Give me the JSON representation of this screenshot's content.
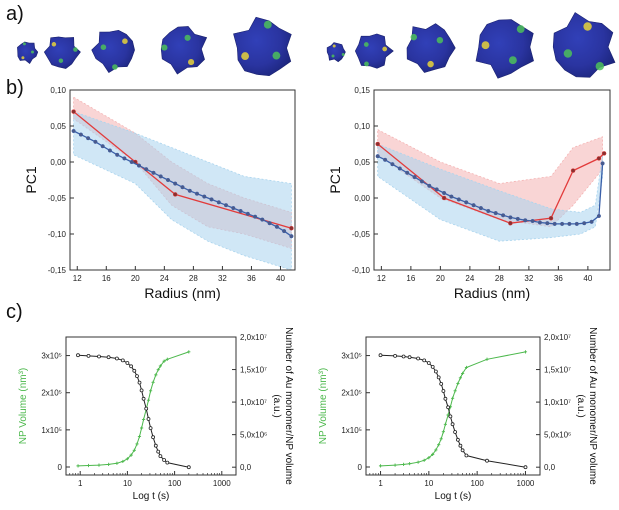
{
  "panels": {
    "a": "a)",
    "b": "b)",
    "c": "c)"
  },
  "colors": {
    "red": "#e23b3b",
    "blue": "#3a5fa8",
    "red_band": "#f4b3b3",
    "blue_band": "#a9d4ee",
    "green": "#4cb84c",
    "black": "#222222",
    "np_blue": "#2a3aa8"
  },
  "thumbnails": {
    "count_left": 5,
    "count_right": 5,
    "description_icon": "nanoparticle-icon"
  },
  "chart_data": [
    {
      "type": "line",
      "panel": "b-left",
      "xlabel": "Radius (nm)",
      "ylabel": "PC1",
      "xlim": [
        11,
        42
      ],
      "ylim": [
        -0.15,
        0.1
      ],
      "xticks": [
        "12",
        "16",
        "20",
        "24",
        "28",
        "32",
        "36",
        "40"
      ],
      "yticks": [
        "0,10",
        "0,05",
        "0,00",
        "-0,05",
        "-0,10",
        "-0,15"
      ],
      "band_red": {
        "x": [
          11.5,
          20,
          25,
          30,
          35,
          41.5
        ],
        "upper": [
          0.09,
          0.04,
          0.0,
          -0.03,
          -0.05,
          -0.07
        ],
        "lower": [
          0.06,
          0.0,
          -0.06,
          -0.09,
          -0.1,
          -0.12
        ]
      },
      "band_blue": {
        "x": [
          11.5,
          20,
          25,
          30,
          35,
          41.5
        ],
        "upper": [
          0.07,
          0.04,
          0.02,
          0.0,
          -0.02,
          -0.03
        ],
        "lower": [
          0.01,
          -0.03,
          -0.08,
          -0.11,
          -0.13,
          -0.15
        ]
      },
      "series": [
        {
          "color": "red",
          "x": [
            11.5,
            20,
            25.5,
            41.5
          ],
          "values": [
            0.07,
            0.0,
            -0.045,
            -0.092
          ]
        },
        {
          "color": "blue",
          "x": [
            11.5,
            12.5,
            13.5,
            14.5,
            15.5,
            16.5,
            17.5,
            18.5,
            19.5,
            20.5,
            21.5,
            22.5,
            23.5,
            24.5,
            25.5,
            26.5,
            27.5,
            28.5,
            29.5,
            30.5,
            31.5,
            32.5,
            33.5,
            34.5,
            35.5,
            36.5,
            37.5,
            38.5,
            39.5,
            40.5,
            41.5
          ],
          "values": [
            0.043,
            0.038,
            0.033,
            0.028,
            0.022,
            0.016,
            0.01,
            0.005,
            0.0,
            -0.005,
            -0.01,
            -0.015,
            -0.02,
            -0.025,
            -0.03,
            -0.035,
            -0.04,
            -0.044,
            -0.048,
            -0.052,
            -0.056,
            -0.06,
            -0.064,
            -0.068,
            -0.072,
            -0.076,
            -0.08,
            -0.085,
            -0.09,
            -0.096,
            -0.103
          ]
        }
      ]
    },
    {
      "type": "line",
      "panel": "b-right",
      "xlabel": "Radius (nm)",
      "ylabel": "PC1",
      "xlim": [
        11,
        43
      ],
      "ylim": [
        -0.1,
        0.15
      ],
      "xticks": [
        "12",
        "16",
        "20",
        "24",
        "28",
        "32",
        "36",
        "40"
      ],
      "yticks": [
        "0,15",
        "0,10",
        "0,05",
        "0,00",
        "-0,05",
        "-0,10"
      ],
      "band_red": {
        "x": [
          11.5,
          20,
          28,
          35,
          38,
          42
        ],
        "upper": [
          0.095,
          0.05,
          0.02,
          0.03,
          0.07,
          0.085
        ],
        "lower": [
          0.06,
          0.0,
          -0.03,
          -0.04,
          -0.01,
          0.04
        ]
      },
      "band_blue": {
        "x": [
          11.5,
          20,
          28,
          35,
          39,
          41,
          42
        ],
        "upper": [
          0.075,
          0.04,
          0.01,
          -0.015,
          -0.02,
          -0.01,
          0.06
        ],
        "lower": [
          0.03,
          -0.03,
          -0.06,
          -0.055,
          -0.05,
          -0.04,
          0.03
        ]
      },
      "series": [
        {
          "color": "red",
          "x": [
            11.5,
            20.5,
            29.5,
            35,
            38,
            41.5,
            42.2
          ],
          "values": [
            0.075,
            0.0,
            -0.035,
            -0.028,
            0.038,
            0.055,
            0.062
          ]
        },
        {
          "color": "blue",
          "x": [
            11.5,
            12.5,
            13.5,
            14.5,
            15.5,
            16.5,
            17.5,
            18.5,
            19.5,
            20.5,
            21.5,
            22.5,
            23.5,
            24.5,
            25.5,
            26.5,
            27.5,
            28.5,
            29.5,
            30.5,
            31.5,
            32.5,
            33.5,
            34.5,
            35.5,
            36.5,
            37.5,
            38.5,
            39.5,
            40.5,
            41.5,
            42.0
          ],
          "values": [
            0.058,
            0.053,
            0.047,
            0.041,
            0.035,
            0.029,
            0.023,
            0.017,
            0.012,
            0.007,
            0.002,
            -0.002,
            -0.006,
            -0.01,
            -0.014,
            -0.018,
            -0.021,
            -0.024,
            -0.027,
            -0.029,
            -0.031,
            -0.032,
            -0.034,
            -0.035,
            -0.036,
            -0.036,
            -0.036,
            -0.036,
            -0.035,
            -0.033,
            -0.025,
            0.048
          ]
        }
      ]
    },
    {
      "type": "line",
      "panel": "c-left",
      "xlabel": "Log t (s)",
      "ylabel_left": "NP Volume (nm³)",
      "ylabel_right": "Number of Au monomer/NP volume (a.u.)",
      "xscale": "log",
      "xlim": [
        0.5,
        2000
      ],
      "xticks": [
        "1",
        "10",
        "100",
        "1000"
      ],
      "ylim_left": [
        0,
        350000.0
      ],
      "ylim_right": [
        -1200000.0,
        20000000.0
      ],
      "yticks_left": [
        "3x10⁵",
        "2x10⁵",
        "1x10⁵",
        "0"
      ],
      "yticks_right": [
        "2,0x10⁷",
        "1,5x10⁷",
        "1,0x10⁷",
        "5,0x10⁶",
        "0,0"
      ],
      "series": [
        {
          "color": "green",
          "axis": "left",
          "x": [
            0.9,
            1.5,
            2.5,
            4,
            6,
            8,
            10,
            12,
            14,
            16,
            18,
            20,
            22,
            25,
            28,
            31,
            35,
            40,
            45,
            50,
            60,
            70,
            200
          ],
          "values": [
            3000,
            4000,
            5000,
            7000,
            10000,
            15000,
            22000,
            32000,
            45000,
            62000,
            82000,
            105000,
            128000,
            155000,
            180000,
            205000,
            228000,
            248000,
            262000,
            272000,
            285000,
            290000,
            310000
          ]
        },
        {
          "color": "black",
          "axis": "right",
          "x": [
            0.9,
            1.5,
            2.5,
            4,
            6,
            8,
            10,
            12,
            14,
            16,
            18,
            20,
            22,
            25,
            28,
            31,
            35,
            40,
            45,
            50,
            60,
            70,
            200
          ],
          "values": [
            17200000.0,
            17100000.0,
            17000000.0,
            16900000.0,
            16700000.0,
            16400000.0,
            16000000.0,
            15500000.0,
            14800000.0,
            14000000.0,
            13000000.0,
            11800000.0,
            10500000.0,
            9000000.0,
            7400000.0,
            6000000.0,
            4600000.0,
            3300000.0,
            2400000.0,
            1700000.0,
            1100000.0,
            700000.0,
            0
          ]
        }
      ]
    },
    {
      "type": "line",
      "panel": "c-right",
      "xlabel": "Log t (s)",
      "ylabel_left": "NP Volume (nm³)",
      "ylabel_right": "Number of Au monomer/NP volume (a.u.)",
      "xscale": "log",
      "xlim": [
        0.5,
        2000
      ],
      "xticks": [
        "1",
        "10",
        "100",
        "1000"
      ],
      "ylim_left": [
        0,
        350000.0
      ],
      "ylim_right": [
        -1200000.0,
        20000000.0
      ],
      "yticks_left": [
        "3x10⁵",
        "2x10⁵",
        "1x10⁵",
        "0"
      ],
      "yticks_right": [
        "2,0x10⁷",
        "1,5x10⁷",
        "1,0x10⁷",
        "5,0x10⁶",
        "0,0"
      ],
      "series": [
        {
          "color": "green",
          "axis": "left",
          "x": [
            1,
            2,
            3,
            4,
            6,
            8,
            10,
            12,
            14,
            16,
            18,
            20,
            22,
            25,
            28,
            31,
            35,
            40,
            45,
            50,
            60,
            160,
            1000
          ],
          "values": [
            3000,
            5000,
            7000,
            9000,
            13000,
            18000,
            25000,
            34000,
            46000,
            60000,
            76000,
            95000,
            115000,
            140000,
            162000,
            185000,
            205000,
            225000,
            240000,
            252000,
            268000,
            290000,
            310000
          ]
        },
        {
          "color": "black",
          "axis": "right",
          "x": [
            1,
            2,
            3,
            4,
            6,
            8,
            10,
            12,
            14,
            16,
            18,
            20,
            22,
            25,
            28,
            31,
            35,
            40,
            45,
            50,
            60,
            160,
            1000
          ],
          "values": [
            17200000.0,
            17100000.0,
            17000000.0,
            16900000.0,
            16700000.0,
            16400000.0,
            16000000.0,
            15400000.0,
            14700000.0,
            13800000.0,
            12800000.0,
            11700000.0,
            10500000.0,
            9200000.0,
            7800000.0,
            6600000.0,
            5400000.0,
            4200000.0,
            3300000.0,
            2600000.0,
            1800000.0,
            1000000.0,
            0
          ]
        }
      ]
    }
  ]
}
